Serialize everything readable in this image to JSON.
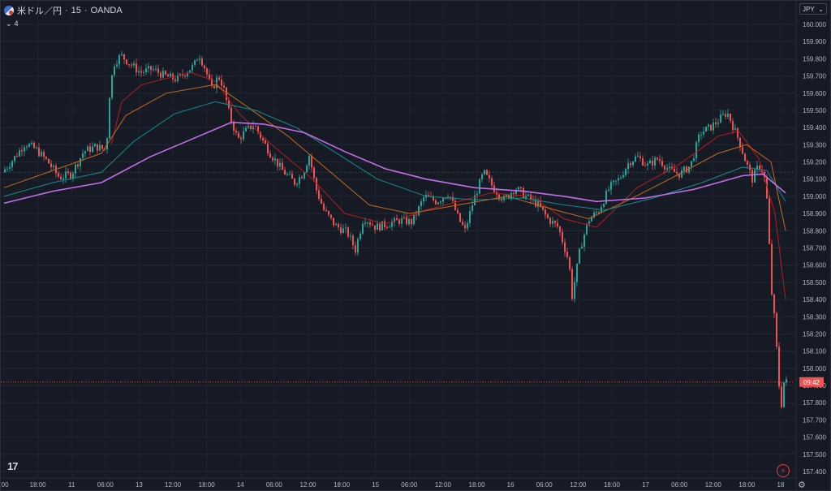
{
  "header": {
    "symbol": "米ドル／円",
    "interval": "15",
    "source": "OANDA",
    "indicator_count": "4"
  },
  "toolbar": {
    "currency": "JPY"
  },
  "current_label": "09:42",
  "colors": {
    "background": "#161a25",
    "up": "#26a69a",
    "down": "#ef5350",
    "ma_fast": "#b71c1c",
    "ma_mid": "#c46a1a",
    "ma_slow": "#138c8c",
    "ma_long": "#c36ee8"
  },
  "chart_data": {
    "type": "candlestick",
    "y_ticks": [
      "160.000",
      "159.900",
      "159.800",
      "159.700",
      "159.600",
      "159.500",
      "159.400",
      "159.300",
      "159.200",
      "159.100",
      "159.000",
      "158.900",
      "158.800",
      "158.700",
      "158.600",
      "158.500",
      "158.400",
      "158.300",
      "158.200",
      "158.100",
      "158.000",
      "157.900",
      "157.800",
      "157.700",
      "157.600",
      "157.500",
      "157.400"
    ],
    "ylim": [
      157.37,
      160.05
    ],
    "x_ticks": [
      ":00",
      "18:00",
      "11",
      "06:00",
      "13",
      "12:00",
      "18:00",
      "14",
      "06:00",
      "12:00",
      "18:00",
      "15",
      "06:00",
      "12:00",
      "18:00",
      "16",
      "06:00",
      "12:00",
      "18:00",
      "17",
      "06:00",
      "12:00",
      "18:00",
      "18"
    ],
    "price_path": [
      [
        0,
        159.14
      ],
      [
        14,
        159.22
      ],
      [
        28,
        159.31
      ],
      [
        42,
        159.27
      ],
      [
        56,
        159.2
      ],
      [
        70,
        159.11
      ],
      [
        85,
        159.13
      ],
      [
        100,
        159.26
      ],
      [
        115,
        159.29
      ],
      [
        128,
        159.27
      ],
      [
        132,
        159.59
      ],
      [
        137,
        159.77
      ],
      [
        146,
        159.82
      ],
      [
        155,
        159.78
      ],
      [
        170,
        159.72
      ],
      [
        185,
        159.74
      ],
      [
        200,
        159.7
      ],
      [
        215,
        159.68
      ],
      [
        228,
        159.73
      ],
      [
        236,
        159.76
      ],
      [
        242,
        159.83
      ],
      [
        250,
        159.74
      ],
      [
        258,
        159.62
      ],
      [
        266,
        159.7
      ],
      [
        272,
        159.64
      ],
      [
        280,
        159.47
      ],
      [
        290,
        159.33
      ],
      [
        300,
        159.38
      ],
      [
        310,
        159.42
      ],
      [
        320,
        159.33
      ],
      [
        330,
        159.25
      ],
      [
        345,
        159.15
      ],
      [
        360,
        159.08
      ],
      [
        370,
        159.13
      ],
      [
        378,
        159.24
      ],
      [
        386,
        159.05
      ],
      [
        396,
        158.92
      ],
      [
        410,
        158.83
      ],
      [
        425,
        158.79
      ],
      [
        435,
        158.69
      ],
      [
        445,
        158.88
      ],
      [
        460,
        158.82
      ],
      [
        475,
        158.84
      ],
      [
        490,
        158.86
      ],
      [
        505,
        158.85
      ],
      [
        520,
        159.0
      ],
      [
        535,
        158.97
      ],
      [
        550,
        159.02
      ],
      [
        562,
        158.87
      ],
      [
        570,
        158.8
      ],
      [
        580,
        158.97
      ],
      [
        593,
        159.14
      ],
      [
        605,
        159.05
      ],
      [
        618,
        158.98
      ],
      [
        632,
        159.05
      ],
      [
        645,
        159.0
      ],
      [
        660,
        158.95
      ],
      [
        672,
        158.87
      ],
      [
        685,
        158.82
      ],
      [
        698,
        158.62
      ],
      [
        702,
        158.42
      ],
      [
        712,
        158.7
      ],
      [
        722,
        158.86
      ],
      [
        735,
        158.92
      ],
      [
        748,
        159.05
      ],
      [
        760,
        159.1
      ],
      [
        772,
        159.2
      ],
      [
        782,
        159.23
      ],
      [
        795,
        159.18
      ],
      [
        808,
        159.22
      ],
      [
        822,
        159.15
      ],
      [
        835,
        159.13
      ],
      [
        848,
        159.18
      ],
      [
        860,
        159.37
      ],
      [
        872,
        159.4
      ],
      [
        882,
        159.44
      ],
      [
        893,
        159.49
      ],
      [
        900,
        159.41
      ],
      [
        908,
        159.32
      ],
      [
        916,
        159.2
      ],
      [
        924,
        159.1
      ],
      [
        932,
        159.18
      ],
      [
        938,
        159.14
      ],
      [
        943,
        158.94
      ],
      [
        947,
        158.48
      ],
      [
        951,
        158.3
      ],
      [
        955,
        158.05
      ],
      [
        959,
        157.75
      ],
      [
        963,
        157.92
      ]
    ],
    "moving_averages": [
      {
        "color_key": "ma_fast",
        "points": [
          [
            132,
            159.3
          ],
          [
            145,
            159.55
          ],
          [
            170,
            159.65
          ],
          [
            230,
            159.72
          ],
          [
            260,
            159.67
          ],
          [
            290,
            159.48
          ],
          [
            330,
            159.3
          ],
          [
            380,
            159.1
          ],
          [
            420,
            158.9
          ],
          [
            470,
            158.84
          ],
          [
            520,
            158.92
          ],
          [
            600,
            159.02
          ],
          [
            650,
            159.0
          ],
          [
            690,
            158.87
          ],
          [
            730,
            158.82
          ],
          [
            780,
            159.05
          ],
          [
            830,
            159.18
          ],
          [
            880,
            159.35
          ],
          [
            905,
            159.38
          ],
          [
            930,
            159.22
          ],
          [
            950,
            158.9
          ],
          [
            963,
            158.4
          ]
        ]
      },
      {
        "color_key": "ma_mid",
        "points": [
          [
            0,
            159.05
          ],
          [
            60,
            159.15
          ],
          [
            120,
            159.25
          ],
          [
            150,
            159.47
          ],
          [
            200,
            159.6
          ],
          [
            260,
            159.65
          ],
          [
            300,
            159.52
          ],
          [
            350,
            159.35
          ],
          [
            400,
            159.15
          ],
          [
            450,
            158.95
          ],
          [
            500,
            158.9
          ],
          [
            560,
            158.95
          ],
          [
            620,
            159.0
          ],
          [
            680,
            158.92
          ],
          [
            720,
            158.87
          ],
          [
            770,
            158.98
          ],
          [
            820,
            159.1
          ],
          [
            880,
            159.25
          ],
          [
            915,
            159.3
          ],
          [
            945,
            159.2
          ],
          [
            963,
            158.8
          ]
        ]
      },
      {
        "color_key": "ma_slow",
        "points": [
          [
            0,
            159.0
          ],
          [
            60,
            159.08
          ],
          [
            120,
            159.14
          ],
          [
            160,
            159.32
          ],
          [
            210,
            159.48
          ],
          [
            260,
            159.55
          ],
          [
            310,
            159.5
          ],
          [
            360,
            159.4
          ],
          [
            410,
            159.25
          ],
          [
            460,
            159.1
          ],
          [
            520,
            159.0
          ],
          [
            580,
            158.98
          ],
          [
            640,
            158.99
          ],
          [
            690,
            158.95
          ],
          [
            740,
            158.92
          ],
          [
            800,
            158.99
          ],
          [
            860,
            159.08
          ],
          [
            910,
            159.17
          ],
          [
            940,
            159.15
          ],
          [
            963,
            158.97
          ]
        ]
      },
      {
        "color_key": "ma_long",
        "points": [
          [
            0,
            158.96
          ],
          [
            60,
            159.03
          ],
          [
            120,
            159.08
          ],
          [
            180,
            159.23
          ],
          [
            240,
            159.35
          ],
          [
            280,
            159.43
          ],
          [
            320,
            159.42
          ],
          [
            370,
            159.37
          ],
          [
            420,
            159.26
          ],
          [
            470,
            159.16
          ],
          [
            520,
            159.1
          ],
          [
            580,
            159.05
          ],
          [
            640,
            159.03
          ],
          [
            690,
            159.0
          ],
          [
            730,
            158.97
          ],
          [
            790,
            158.99
          ],
          [
            850,
            159.04
          ],
          [
            910,
            159.12
          ],
          [
            935,
            159.13
          ],
          [
            963,
            159.02
          ]
        ]
      }
    ]
  }
}
